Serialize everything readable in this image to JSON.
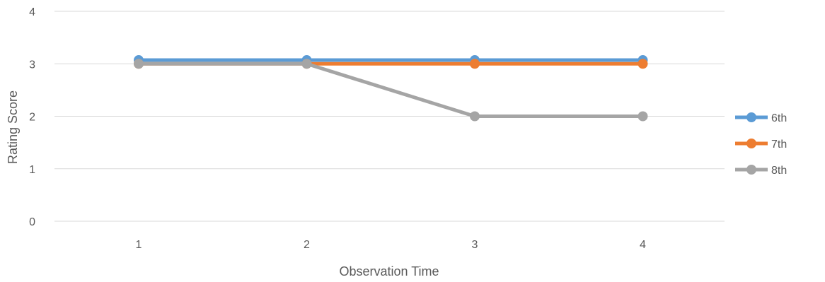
{
  "chart_data": {
    "type": "line",
    "title": "",
    "xlabel": "Observation Time",
    "ylabel": "Rating Score",
    "categories": [
      "1",
      "2",
      "3",
      "4"
    ],
    "ylim": [
      0,
      4
    ],
    "yticks": [
      "0",
      "1",
      "2",
      "3",
      "4"
    ],
    "grid": "horizontal",
    "legend_position": "right",
    "series": [
      {
        "name": "6th",
        "color": "#5B9BD5",
        "values": [
          3.07,
          3.07,
          3.07,
          3.07
        ]
      },
      {
        "name": "7th",
        "color": "#ED7D31",
        "values": [
          3,
          3,
          3,
          3
        ]
      },
      {
        "name": "8th",
        "color": "#A5A5A5",
        "values": [
          3,
          3,
          2,
          2
        ]
      }
    ]
  }
}
